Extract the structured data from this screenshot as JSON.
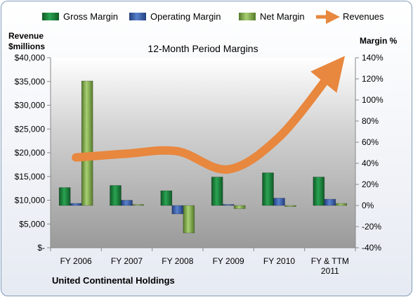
{
  "chart_data": {
    "type": "bar",
    "title": "12-Month Period Margins",
    "ylabel_left": [
      "Revenue",
      "$millions"
    ],
    "ylabel_right": "Margin %",
    "company": "United Continental Holdings",
    "categories": [
      [
        "FY 2006"
      ],
      [
        "FY 2007"
      ],
      [
        "FY 2008"
      ],
      [
        "FY 2009"
      ],
      [
        "FY 2010"
      ],
      [
        "FY & TTM",
        "2011"
      ]
    ],
    "y_left": {
      "min": 0,
      "max": 40000,
      "step": 5000,
      "tick_labels": [
        "$-",
        "$5,000",
        "$10,000",
        "$15,000",
        "$20,000",
        "$25,000",
        "$30,000",
        "$35,000",
        "$40,000"
      ]
    },
    "y_right": {
      "min": -40,
      "max": 140,
      "step": 20,
      "tick_labels": [
        "-40%",
        "-20%",
        "0%",
        "20%",
        "40%",
        "60%",
        "80%",
        "100%",
        "120%",
        "140%"
      ]
    },
    "series": [
      {
        "name": "Gross Margin",
        "axis": "right",
        "color": "#1e7a3c",
        "values": [
          17,
          19,
          14,
          27,
          31,
          27
        ]
      },
      {
        "name": "Operating Margin",
        "axis": "right",
        "color": "#3f64b0",
        "values": [
          2,
          5,
          -8,
          1,
          7,
          6
        ]
      },
      {
        "name": "Net Margin",
        "axis": "right",
        "color": "#7fa84a",
        "values": [
          118,
          1,
          -26,
          -3,
          0,
          2
        ]
      },
      {
        "name": "Revenues",
        "type": "line",
        "axis": "left",
        "color": "#e8873e",
        "values": [
          19000,
          19800,
          20300,
          16500,
          23300,
          36500
        ]
      }
    ],
    "legend_position": "top",
    "grid": false
  }
}
